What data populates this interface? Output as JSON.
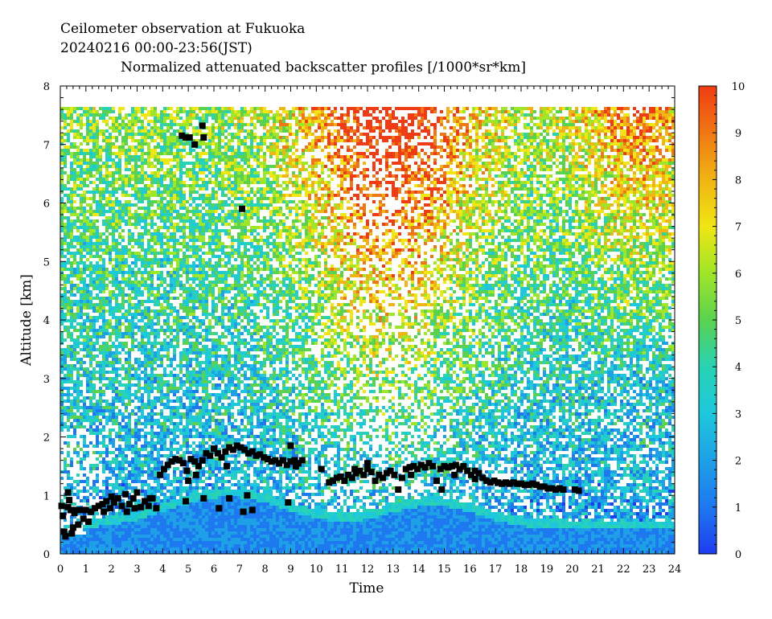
{
  "header": {
    "line1": "Ceilometer observation at Fukuoka",
    "line2": "20240216  00:00-23:56(JST)",
    "line3": "Normalized attenuated backscatter profiles [/1000*sr*km]"
  },
  "chart_data": {
    "type": "heatmap",
    "title": "Normalized attenuated backscatter profiles [/1000*sr*km]",
    "xlabel": "Time",
    "ylabel": "Altitude [km]",
    "xlim": [
      0,
      24
    ],
    "ylim": [
      0,
      8
    ],
    "x_ticks": [
      "0",
      "1",
      "2",
      "3",
      "4",
      "5",
      "6",
      "7",
      "8",
      "9",
      "10",
      "11",
      "12",
      "13",
      "14",
      "15",
      "16",
      "17",
      "18",
      "19",
      "20",
      "21",
      "22",
      "23",
      "24"
    ],
    "y_ticks": [
      "0",
      "1",
      "2",
      "3",
      "4",
      "5",
      "6",
      "7",
      "8"
    ],
    "colorbar": {
      "range": [
        0,
        10
      ],
      "ticks": [
        "0",
        "1",
        "2",
        "3",
        "4",
        "5",
        "6",
        "7",
        "8",
        "9",
        "10"
      ],
      "colors": [
        "#1e3cf0",
        "#1e78f0",
        "#1ea0e6",
        "#1ec8dc",
        "#28d2b4",
        "#5ad250",
        "#a0e628",
        "#f0e614",
        "#f0b414",
        "#f07814",
        "#f03c14"
      ]
    },
    "cloud_base_points": [
      {
        "x": 0.05,
        "y": 0.82
      },
      {
        "x": 0.1,
        "y": 0.65
      },
      {
        "x": 0.15,
        "y": 0.38
      },
      {
        "x": 0.2,
        "y": 0.3
      },
      {
        "x": 0.3,
        "y": 1.05
      },
      {
        "x": 0.35,
        "y": 0.92
      },
      {
        "x": 0.4,
        "y": 0.75
      },
      {
        "x": 0.45,
        "y": 0.35
      },
      {
        "x": 0.5,
        "y": 0.45
      },
      {
        "x": 0.6,
        "y": 0.75
      },
      {
        "x": 0.7,
        "y": 0.5
      },
      {
        "x": 0.8,
        "y": 0.75
      },
      {
        "x": 0.9,
        "y": 0.6
      },
      {
        "x": 1.0,
        "y": 0.75
      },
      {
        "x": 1.1,
        "y": 0.55
      },
      {
        "x": 1.2,
        "y": 0.72
      },
      {
        "x": 1.35,
        "y": 0.78
      },
      {
        "x": 1.5,
        "y": 0.82
      },
      {
        "x": 1.65,
        "y": 0.85
      },
      {
        "x": 1.8,
        "y": 0.9
      },
      {
        "x": 1.95,
        "y": 0.78
      },
      {
        "x": 2.1,
        "y": 0.88
      },
      {
        "x": 2.25,
        "y": 0.95
      },
      {
        "x": 2.4,
        "y": 0.82
      },
      {
        "x": 2.55,
        "y": 1.02
      },
      {
        "x": 2.7,
        "y": 0.85
      },
      {
        "x": 2.85,
        "y": 0.95
      },
      {
        "x": 3.0,
        "y": 1.05
      },
      {
        "x": 3.15,
        "y": 0.8
      },
      {
        "x": 3.3,
        "y": 0.9
      },
      {
        "x": 3.45,
        "y": 0.82
      },
      {
        "x": 3.6,
        "y": 0.95
      },
      {
        "x": 3.75,
        "y": 0.78
      },
      {
        "x": 3.9,
        "y": 1.35
      },
      {
        "x": 4.05,
        "y": 1.45
      },
      {
        "x": 4.2,
        "y": 1.52
      },
      {
        "x": 4.35,
        "y": 1.58
      },
      {
        "x": 4.5,
        "y": 1.62
      },
      {
        "x": 4.65,
        "y": 1.6
      },
      {
        "x": 4.8,
        "y": 1.55
      },
      {
        "x": 4.95,
        "y": 1.42
      },
      {
        "x": 5.1,
        "y": 1.62
      },
      {
        "x": 5.25,
        "y": 1.58
      },
      {
        "x": 5.4,
        "y": 1.5
      },
      {
        "x": 5.55,
        "y": 1.6
      },
      {
        "x": 5.7,
        "y": 1.72
      },
      {
        "x": 5.85,
        "y": 1.68
      },
      {
        "x": 6.0,
        "y": 1.8
      },
      {
        "x": 6.15,
        "y": 1.72
      },
      {
        "x": 6.3,
        "y": 1.65
      },
      {
        "x": 6.45,
        "y": 1.75
      },
      {
        "x": 6.6,
        "y": 1.82
      },
      {
        "x": 6.75,
        "y": 1.78
      },
      {
        "x": 6.9,
        "y": 1.85
      },
      {
        "x": 7.05,
        "y": 1.82
      },
      {
        "x": 7.2,
        "y": 1.78
      },
      {
        "x": 7.35,
        "y": 1.72
      },
      {
        "x": 7.5,
        "y": 1.75
      },
      {
        "x": 7.65,
        "y": 1.68
      },
      {
        "x": 7.8,
        "y": 1.7
      },
      {
        "x": 7.95,
        "y": 1.65
      },
      {
        "x": 8.1,
        "y": 1.62
      },
      {
        "x": 8.25,
        "y": 1.58
      },
      {
        "x": 8.4,
        "y": 1.6
      },
      {
        "x": 8.55,
        "y": 1.55
      },
      {
        "x": 8.7,
        "y": 1.6
      },
      {
        "x": 8.85,
        "y": 1.52
      },
      {
        "x": 9.0,
        "y": 1.58
      },
      {
        "x": 9.15,
        "y": 1.6
      },
      {
        "x": 9.3,
        "y": 1.55
      },
      {
        "x": 9.45,
        "y": 1.6
      },
      {
        "x": 10.2,
        "y": 1.45
      },
      {
        "x": 10.5,
        "y": 1.22
      },
      {
        "x": 10.65,
        "y": 1.25
      },
      {
        "x": 10.8,
        "y": 1.3
      },
      {
        "x": 10.95,
        "y": 1.32
      },
      {
        "x": 11.1,
        "y": 1.25
      },
      {
        "x": 11.25,
        "y": 1.35
      },
      {
        "x": 11.4,
        "y": 1.3
      },
      {
        "x": 11.55,
        "y": 1.38
      },
      {
        "x": 11.7,
        "y": 1.42
      },
      {
        "x": 11.85,
        "y": 1.35
      },
      {
        "x": 12.0,
        "y": 1.45
      },
      {
        "x": 12.15,
        "y": 1.4
      },
      {
        "x": 12.3,
        "y": 1.25
      },
      {
        "x": 12.45,
        "y": 1.35
      },
      {
        "x": 12.6,
        "y": 1.3
      },
      {
        "x": 12.75,
        "y": 1.38
      },
      {
        "x": 12.9,
        "y": 1.42
      },
      {
        "x": 13.05,
        "y": 1.35
      },
      {
        "x": 13.2,
        "y": 1.1
      },
      {
        "x": 13.35,
        "y": 1.3
      },
      {
        "x": 13.5,
        "y": 1.45
      },
      {
        "x": 13.65,
        "y": 1.48
      },
      {
        "x": 13.8,
        "y": 1.5
      },
      {
        "x": 13.95,
        "y": 1.45
      },
      {
        "x": 14.1,
        "y": 1.52
      },
      {
        "x": 14.25,
        "y": 1.48
      },
      {
        "x": 14.4,
        "y": 1.55
      },
      {
        "x": 14.55,
        "y": 1.5
      },
      {
        "x": 14.7,
        "y": 1.25
      },
      {
        "x": 14.85,
        "y": 1.45
      },
      {
        "x": 15.0,
        "y": 1.5
      },
      {
        "x": 15.15,
        "y": 1.48
      },
      {
        "x": 15.3,
        "y": 1.5
      },
      {
        "x": 15.45,
        "y": 1.52
      },
      {
        "x": 15.6,
        "y": 1.45
      },
      {
        "x": 15.75,
        "y": 1.5
      },
      {
        "x": 15.9,
        "y": 1.42
      },
      {
        "x": 16.05,
        "y": 1.35
      },
      {
        "x": 16.2,
        "y": 1.42
      },
      {
        "x": 16.35,
        "y": 1.38
      },
      {
        "x": 16.5,
        "y": 1.3
      },
      {
        "x": 16.65,
        "y": 1.25
      },
      {
        "x": 16.8,
        "y": 1.22
      },
      {
        "x": 16.95,
        "y": 1.25
      },
      {
        "x": 17.1,
        "y": 1.22
      },
      {
        "x": 17.25,
        "y": 1.2
      },
      {
        "x": 17.4,
        "y": 1.22
      },
      {
        "x": 17.55,
        "y": 1.2
      },
      {
        "x": 17.7,
        "y": 1.22
      },
      {
        "x": 17.85,
        "y": 1.2
      },
      {
        "x": 18.0,
        "y": 1.2
      },
      {
        "x": 18.15,
        "y": 1.18
      },
      {
        "x": 18.3,
        "y": 1.18
      },
      {
        "x": 18.45,
        "y": 1.2
      },
      {
        "x": 18.6,
        "y": 1.18
      },
      {
        "x": 18.75,
        "y": 1.15
      },
      {
        "x": 18.9,
        "y": 1.15
      },
      {
        "x": 19.05,
        "y": 1.12
      },
      {
        "x": 19.2,
        "y": 1.12
      },
      {
        "x": 19.35,
        "y": 1.1
      },
      {
        "x": 19.5,
        "y": 1.12
      },
      {
        "x": 19.65,
        "y": 1.1
      },
      {
        "x": 20.1,
        "y": 1.1
      },
      {
        "x": 20.25,
        "y": 1.08
      },
      {
        "x": 0.3,
        "y": 0.8
      },
      {
        "x": 0.55,
        "y": 0.7
      },
      {
        "x": 2.0,
        "y": 0.98
      },
      {
        "x": 2.9,
        "y": 0.78
      },
      {
        "x": 5.0,
        "y": 1.25
      },
      {
        "x": 5.6,
        "y": 0.95
      },
      {
        "x": 6.2,
        "y": 0.78
      },
      {
        "x": 6.5,
        "y": 1.5
      },
      {
        "x": 7.15,
        "y": 0.72
      },
      {
        "x": 7.3,
        "y": 1.0
      },
      {
        "x": 7.5,
        "y": 0.75
      },
      {
        "x": 8.9,
        "y": 0.88
      },
      {
        "x": 9.0,
        "y": 1.85
      },
      {
        "x": 5.3,
        "y": 1.35
      },
      {
        "x": 4.9,
        "y": 0.9
      },
      {
        "x": 4.75,
        "y": 7.15
      },
      {
        "x": 4.9,
        "y": 7.12
      },
      {
        "x": 5.05,
        "y": 7.12
      },
      {
        "x": 5.25,
        "y": 7.0
      },
      {
        "x": 5.55,
        "y": 7.32
      },
      {
        "x": 5.6,
        "y": 7.12
      },
      {
        "x": 7.1,
        "y": 5.9
      },
      {
        "x": 6.6,
        "y": 0.95
      },
      {
        "x": 12.0,
        "y": 1.55
      },
      {
        "x": 14.9,
        "y": 1.1
      },
      {
        "x": 15.4,
        "y": 1.35
      },
      {
        "x": 16.2,
        "y": 1.28
      },
      {
        "x": 13.7,
        "y": 1.35
      },
      {
        "x": 11.5,
        "y": 1.45
      },
      {
        "x": 9.2,
        "y": 1.5
      },
      {
        "x": 1.7,
        "y": 0.72
      },
      {
        "x": 2.6,
        "y": 0.72
      },
      {
        "x": 3.5,
        "y": 0.95
      }
    ]
  }
}
